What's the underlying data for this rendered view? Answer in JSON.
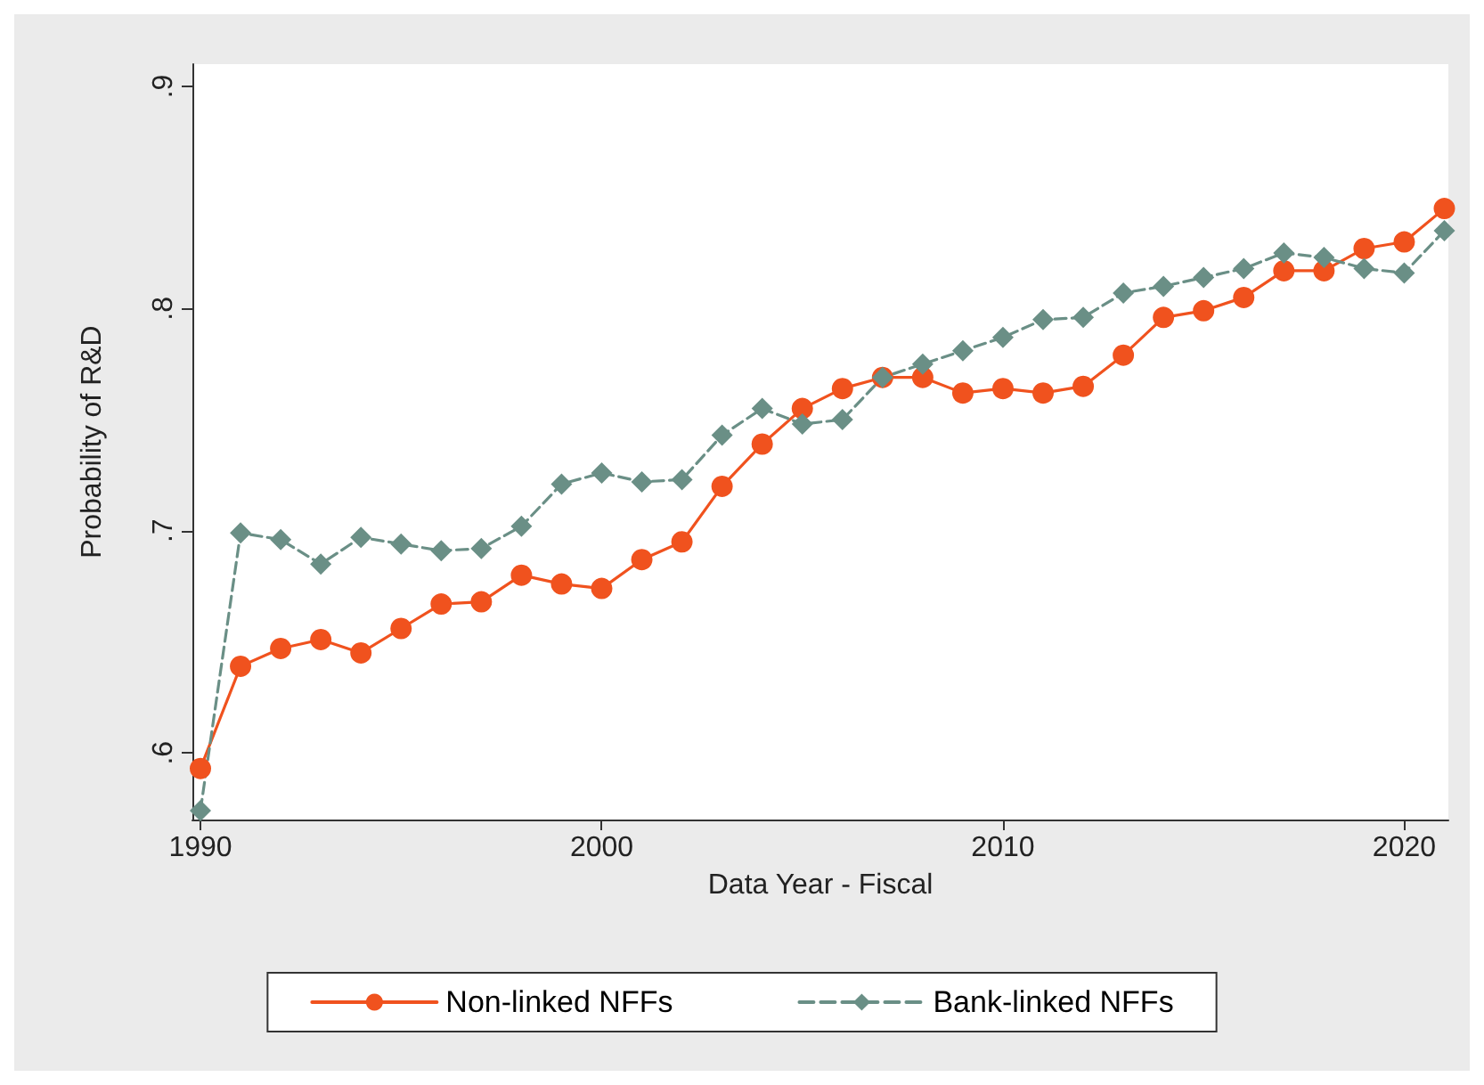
{
  "chart_data": {
    "type": "line",
    "xlabel": "Data Year - Fiscal",
    "ylabel": "Probability of R&D",
    "x": [
      1990,
      1991,
      1992,
      1993,
      1994,
      1995,
      1996,
      1997,
      1998,
      1999,
      2000,
      2001,
      2002,
      2003,
      2004,
      2005,
      2006,
      2007,
      2008,
      2009,
      2010,
      2011,
      2012,
      2013,
      2014,
      2015,
      2016,
      2017,
      2018,
      2019,
      2020,
      2021
    ],
    "series": [
      {
        "name": "Non-linked NFFs",
        "color": "#f0521e",
        "marker": "circle",
        "line_style": "solid",
        "values": [
          0.593,
          0.639,
          0.647,
          0.651,
          0.645,
          0.656,
          0.667,
          0.668,
          0.68,
          0.676,
          0.674,
          0.687,
          0.695,
          0.72,
          0.739,
          0.755,
          0.764,
          0.769,
          0.769,
          0.762,
          0.764,
          0.762,
          0.765,
          0.779,
          0.796,
          0.799,
          0.805,
          0.817,
          0.817,
          0.827,
          0.83,
          0.845
        ]
      },
      {
        "name": "Bank-linked NFFs",
        "color": "#6a8f86",
        "marker": "diamond",
        "line_style": "dashed",
        "values": [
          0.574,
          0.699,
          0.696,
          0.685,
          0.697,
          0.694,
          0.691,
          0.692,
          0.702,
          0.721,
          0.726,
          0.722,
          0.723,
          0.743,
          0.755,
          0.748,
          0.75,
          0.769,
          0.775,
          0.781,
          0.787,
          0.795,
          0.796,
          0.807,
          0.81,
          0.814,
          0.818,
          0.825,
          0.823,
          0.818,
          0.816,
          0.835
        ]
      }
    ],
    "xlim": [
      1989.8,
      2021.1
    ],
    "xticks": [
      1990,
      2000,
      2010,
      2020
    ],
    "ylim": [
      0.57,
      0.91
    ],
    "yticks": [
      {
        "value": 0.6,
        "label": ".6"
      },
      {
        "value": 0.7,
        "label": ".7"
      },
      {
        "value": 0.8,
        "label": ".8"
      },
      {
        "value": 0.9,
        "label": ".9"
      }
    ],
    "grid": false,
    "legend": "bottom"
  }
}
